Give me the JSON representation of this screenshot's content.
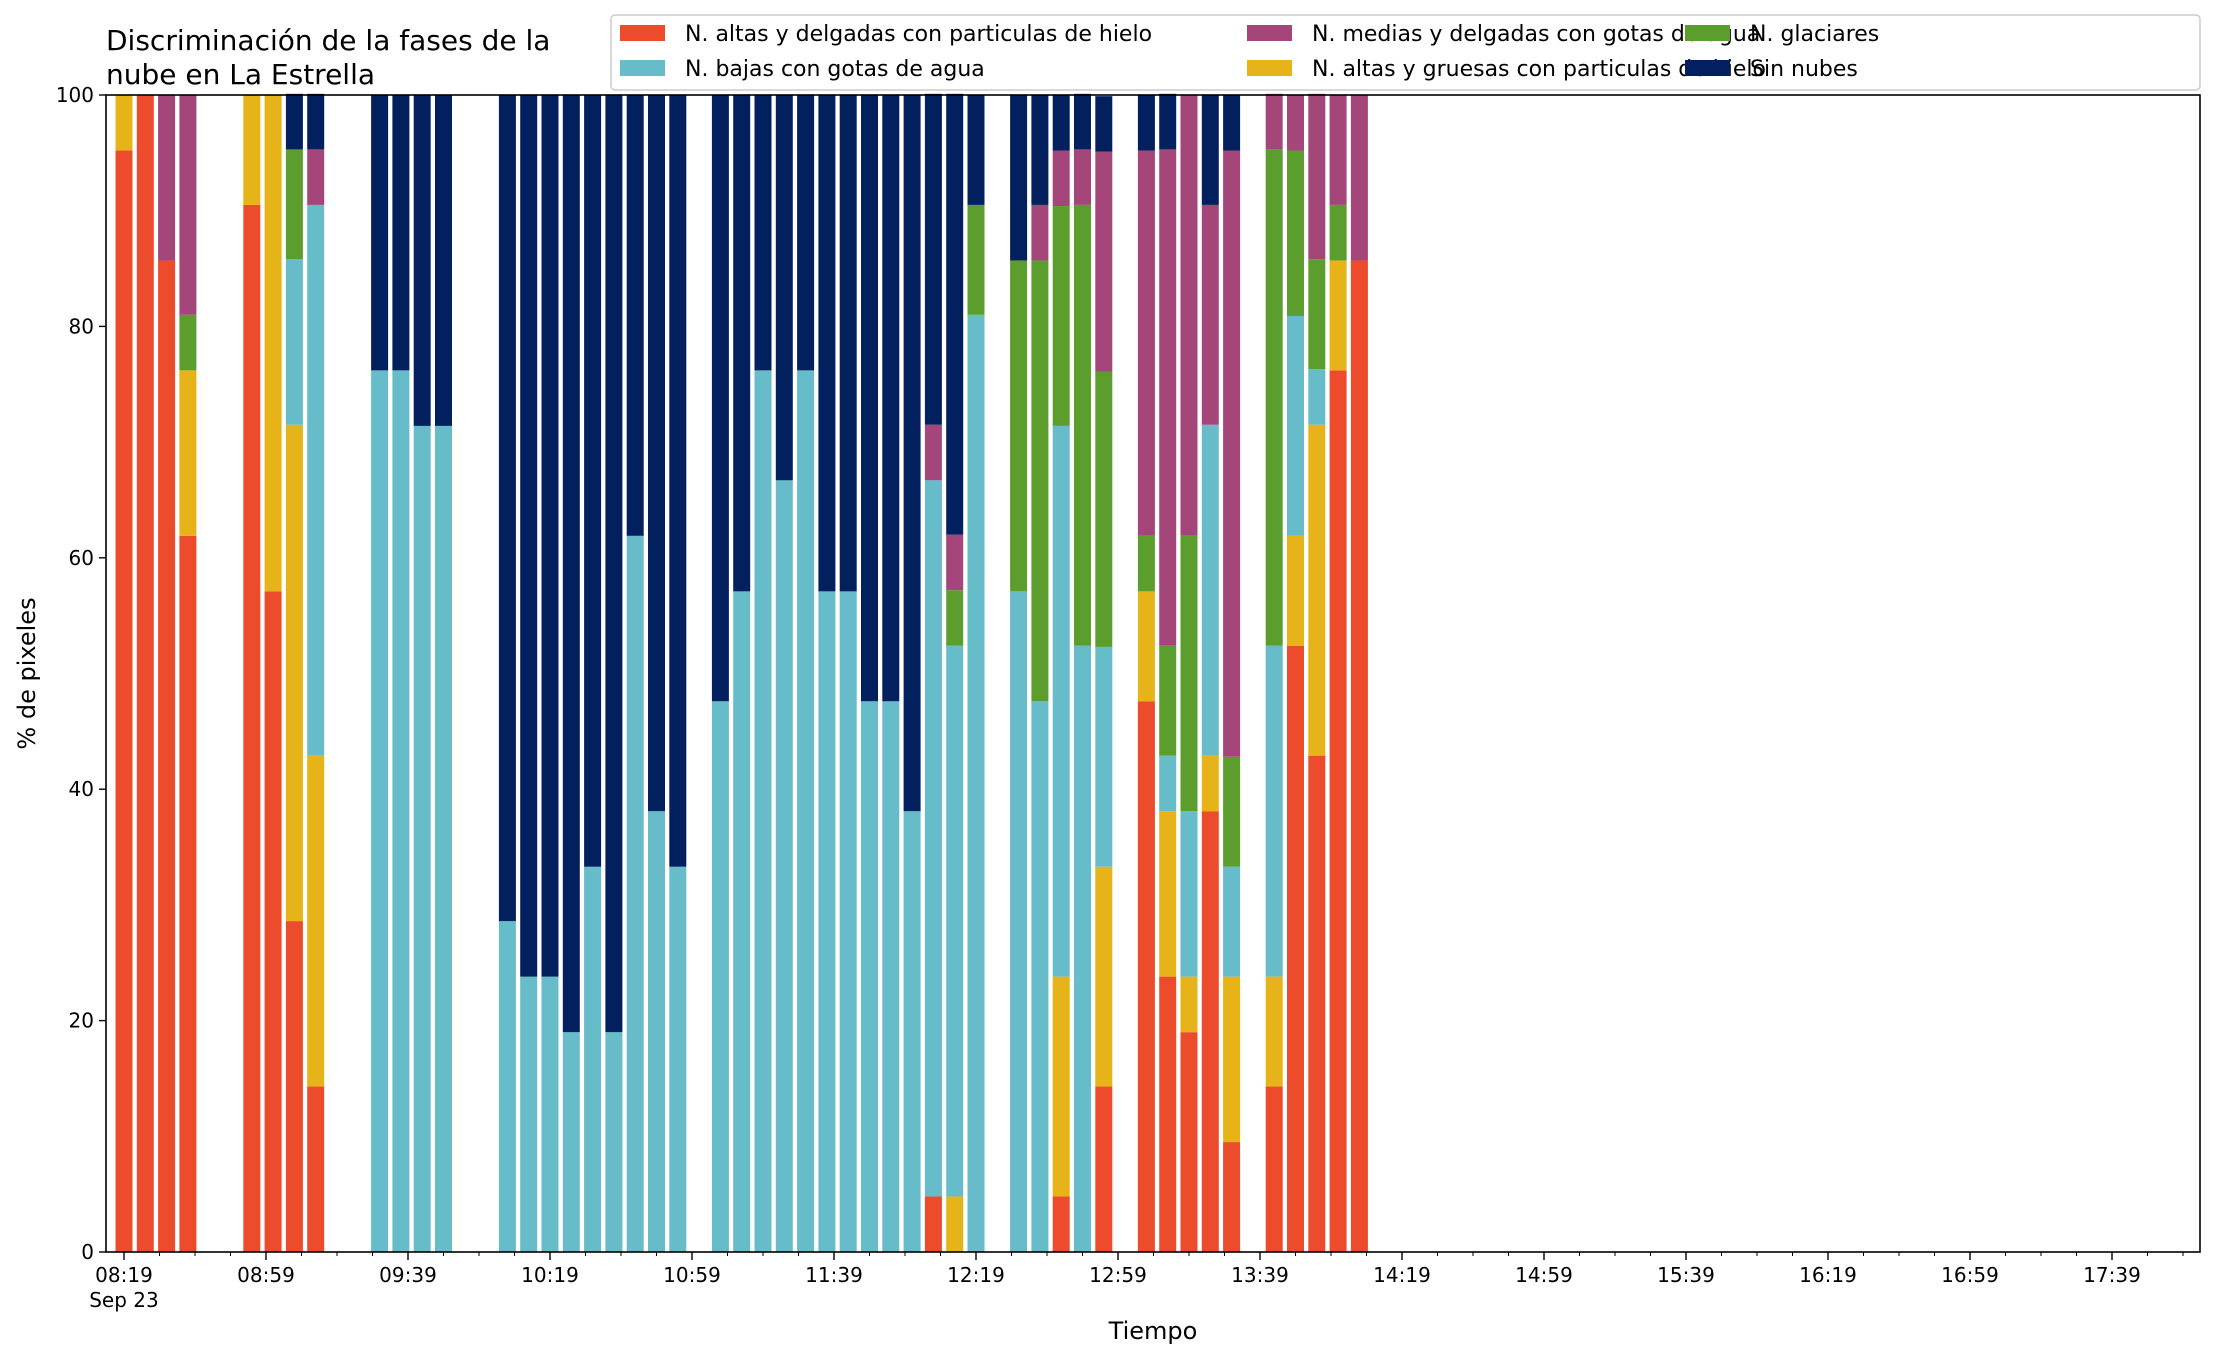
{
  "chart_data": {
    "type": "bar",
    "stacked": true,
    "title": "Discriminación de la fases de la\nnube en La Estrella",
    "xlabel": "Tiempo",
    "ylabel": "% de pixeles",
    "ylim": [
      0,
      100
    ],
    "yticks": [
      0,
      20,
      40,
      60,
      80,
      100
    ],
    "x_tick_labels": [
      {
        "time": "08:19",
        "sub": "Sep 23"
      },
      {
        "time": "08:59",
        "sub": ""
      },
      {
        "time": "09:39",
        "sub": ""
      },
      {
        "time": "10:19",
        "sub": ""
      },
      {
        "time": "10:59",
        "sub": ""
      },
      {
        "time": "11:39",
        "sub": ""
      },
      {
        "time": "12:19",
        "sub": ""
      },
      {
        "time": "12:59",
        "sub": ""
      },
      {
        "time": "13:39",
        "sub": ""
      },
      {
        "time": "14:19",
        "sub": ""
      },
      {
        "time": "14:59",
        "sub": ""
      },
      {
        "time": "15:39",
        "sub": ""
      },
      {
        "time": "16:19",
        "sub": ""
      },
      {
        "time": "16:59",
        "sub": ""
      },
      {
        "time": "17:39",
        "sub": ""
      }
    ],
    "x_minor_tick_times": [
      "08:29",
      "08:39",
      "08:49",
      "09:09",
      "09:19",
      "09:29",
      "09:49",
      "09:59",
      "10:09",
      "10:29",
      "10:39",
      "10:49",
      "11:09",
      "11:19",
      "11:29",
      "11:49",
      "11:59",
      "12:09",
      "12:29",
      "12:39",
      "12:49",
      "13:09",
      "13:19",
      "13:29",
      "13:49",
      "13:59",
      "14:09",
      "14:29",
      "14:39",
      "14:49",
      "15:09",
      "15:19",
      "15:29",
      "15:49",
      "15:59",
      "16:09",
      "16:29",
      "16:39",
      "16:49",
      "17:09",
      "17:19",
      "17:29",
      "17:49",
      "17:59"
    ],
    "legend_position": "top-right",
    "grid": false,
    "series": [
      {
        "name": "N. altas y delgadas con particulas de hielo",
        "color": "#ec4b2c"
      },
      {
        "name": "N. altas y gruesas con particulas de hielo",
        "color": "#e6b418"
      },
      {
        "name": "N. bajas con gotas de agua",
        "color": "#66bcc8"
      },
      {
        "name": "N. glaciares",
        "color": "#5c9e2e"
      },
      {
        "name": "N. medias y delgadas con gotas de agua",
        "color": "#a5467a"
      },
      {
        "name": "Sin nubes",
        "color": "#03205e"
      }
    ],
    "legend_order": [
      0,
      2,
      4,
      1,
      3,
      5
    ],
    "bars": [
      {
        "time": "08:19",
        "values": [
          95.2,
          4.8,
          0,
          0,
          0,
          0
        ]
      },
      {
        "time": "08:25",
        "values": [
          100,
          0,
          0,
          0,
          0,
          0
        ]
      },
      {
        "time": "08:31",
        "values": [
          85.7,
          0,
          0,
          0,
          14.3,
          0
        ]
      },
      {
        "time": "08:37",
        "values": [
          61.9,
          14.3,
          0,
          4.8,
          19.0,
          0
        ]
      },
      {
        "time": "08:55",
        "values": [
          90.5,
          9.5,
          0,
          0,
          0,
          0
        ]
      },
      {
        "time": "09:01",
        "values": [
          57.1,
          42.9,
          0,
          0,
          0,
          0
        ]
      },
      {
        "time": "09:07",
        "values": [
          28.6,
          42.9,
          14.3,
          9.5,
          0,
          4.8
        ]
      },
      {
        "time": "09:13",
        "values": [
          14.3,
          28.6,
          47.6,
          0,
          4.8,
          4.8
        ]
      },
      {
        "time": "09:31",
        "values": [
          0,
          0,
          76.2,
          0,
          0,
          23.8
        ]
      },
      {
        "time": "09:37",
        "values": [
          0,
          0,
          76.2,
          0,
          0,
          23.8
        ]
      },
      {
        "time": "09:43",
        "values": [
          0,
          0,
          71.4,
          0,
          0,
          28.6
        ]
      },
      {
        "time": "09:49",
        "values": [
          0,
          0,
          71.4,
          0,
          0,
          28.6
        ]
      },
      {
        "time": "10:07",
        "values": [
          0,
          0,
          28.6,
          0,
          0,
          71.4
        ]
      },
      {
        "time": "10:13",
        "values": [
          0,
          0,
          23.8,
          0,
          0,
          76.2
        ]
      },
      {
        "time": "10:19",
        "values": [
          0,
          0,
          23.8,
          0,
          0,
          76.2
        ]
      },
      {
        "time": "10:25",
        "values": [
          0,
          0,
          19.0,
          0,
          0,
          81.0
        ]
      },
      {
        "time": "10:31",
        "values": [
          0,
          0,
          33.3,
          0,
          0,
          66.7
        ]
      },
      {
        "time": "10:37",
        "values": [
          0,
          0,
          19.0,
          0,
          0,
          81.0
        ]
      },
      {
        "time": "10:43",
        "values": [
          0,
          0,
          61.9,
          0,
          0,
          38.1
        ]
      },
      {
        "time": "10:49",
        "values": [
          0,
          0,
          38.1,
          0,
          0,
          61.9
        ]
      },
      {
        "time": "10:55",
        "values": [
          0,
          0,
          33.3,
          0,
          0,
          66.7
        ]
      },
      {
        "time": "11:07",
        "values": [
          0,
          0,
          47.6,
          0,
          0,
          52.4
        ]
      },
      {
        "time": "11:13",
        "values": [
          0,
          0,
          57.1,
          0,
          0,
          42.9
        ]
      },
      {
        "time": "11:19",
        "values": [
          0,
          0,
          76.2,
          0,
          0,
          23.8
        ]
      },
      {
        "time": "11:25",
        "values": [
          0,
          0,
          66.7,
          0,
          0,
          33.3
        ]
      },
      {
        "time": "11:31",
        "values": [
          0,
          0,
          76.2,
          0,
          0,
          23.8
        ]
      },
      {
        "time": "11:37",
        "values": [
          0,
          0,
          57.1,
          0,
          0,
          42.9
        ]
      },
      {
        "time": "11:43",
        "values": [
          0,
          0,
          57.1,
          0,
          0,
          42.9
        ]
      },
      {
        "time": "11:49",
        "values": [
          0,
          0,
          47.6,
          0,
          0,
          52.4
        ]
      },
      {
        "time": "11:55",
        "values": [
          0,
          0,
          47.6,
          0,
          0,
          52.4
        ]
      },
      {
        "time": "12:01",
        "values": [
          0,
          0,
          38.1,
          0,
          0,
          61.9
        ]
      },
      {
        "time": "12:07",
        "values": [
          4.8,
          0,
          61.9,
          0,
          4.8,
          28.6
        ]
      },
      {
        "time": "12:13",
        "values": [
          0,
          4.8,
          47.6,
          4.8,
          4.8,
          38.1
        ]
      },
      {
        "time": "12:19",
        "values": [
          0,
          0,
          81.0,
          9.5,
          0,
          9.5
        ]
      },
      {
        "time": "12:31",
        "values": [
          0,
          0,
          57.1,
          28.6,
          0,
          14.3
        ]
      },
      {
        "time": "12:37",
        "values": [
          0,
          0,
          47.6,
          38.1,
          4.8,
          9.5
        ]
      },
      {
        "time": "12:43",
        "values": [
          4.8,
          19.0,
          47.6,
          19.0,
          4.8,
          4.8
        ]
      },
      {
        "time": "12:49",
        "values": [
          0,
          0,
          52.4,
          38.1,
          4.8,
          4.8
        ]
      },
      {
        "time": "12:55",
        "values": [
          14.3,
          19.0,
          19.0,
          23.8,
          19.0,
          4.8
        ]
      },
      {
        "time": "13:07",
        "values": [
          47.6,
          9.5,
          0,
          4.8,
          33.3,
          4.8
        ]
      },
      {
        "time": "13:13",
        "values": [
          23.8,
          14.3,
          4.8,
          9.5,
          42.9,
          4.8
        ]
      },
      {
        "time": "13:19",
        "values": [
          19.0,
          4.8,
          14.3,
          23.8,
          38.1,
          0
        ]
      },
      {
        "time": "13:25",
        "values": [
          38.1,
          4.8,
          28.6,
          0,
          19.0,
          9.5
        ]
      },
      {
        "time": "13:31",
        "values": [
          9.5,
          14.3,
          9.5,
          9.5,
          52.4,
          4.8
        ]
      },
      {
        "time": "13:43",
        "values": [
          14.3,
          9.5,
          28.6,
          42.9,
          4.8,
          0
        ]
      },
      {
        "time": "13:49",
        "values": [
          52.4,
          9.5,
          19.0,
          14.3,
          4.8,
          0
        ]
      },
      {
        "time": "13:55",
        "values": [
          42.9,
          28.6,
          4.8,
          9.5,
          14.3,
          0
        ]
      },
      {
        "time": "14:01",
        "values": [
          76.2,
          9.5,
          0,
          4.8,
          9.5,
          0
        ]
      },
      {
        "time": "14:07",
        "values": [
          85.7,
          0,
          0,
          0,
          14.3,
          0
        ]
      }
    ]
  }
}
